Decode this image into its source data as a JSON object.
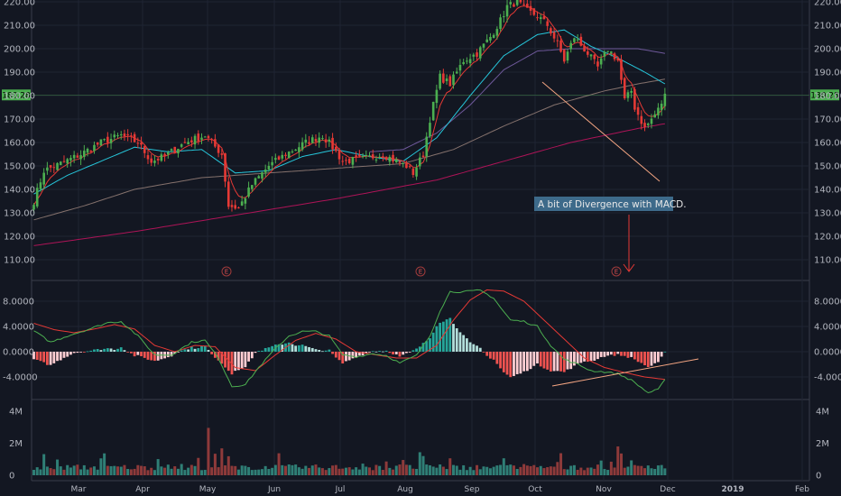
{
  "chart_data": {
    "type": "candlestick",
    "price_axis": {
      "ylim": [
        110,
        225
      ],
      "ticks": [
        "110.00",
        "120.00",
        "130.00",
        "140.00",
        "150.00",
        "160.00",
        "170.00",
        "180.00",
        "190.00",
        "200.00",
        "210.00",
        "220.00"
      ],
      "current_price": "180.28"
    },
    "macd_axis": {
      "ylim": [
        -7.5,
        10.5
      ],
      "ticks": [
        "-4.0000",
        "0.0000",
        "4.0000",
        "8.0000"
      ]
    },
    "volume_axis": {
      "ylim": [
        0,
        5.6
      ],
      "ticks": [
        "0",
        "2M",
        "4M"
      ]
    },
    "months": [
      "Mar",
      "Apr",
      "May",
      "Jun",
      "Jul",
      "Aug",
      "Sep",
      "Oct",
      "Nov",
      "Dec",
      "2019",
      "Feb"
    ],
    "earnings_marker_label": "E",
    "annotation": "A bit of Divergence with MACD.",
    "colors": {
      "up": "#26a69a",
      "down": "#ef5350",
      "candle_up": "#4caf50",
      "candle_down": "#e53935",
      "ma_fast": "#e53935",
      "ma_cyan": "#26c6da",
      "ma_purple": "#9575cd",
      "ma_tan": "#a1887f",
      "ma_maroon": "#ad1457",
      "macd": "#4caf50",
      "signal": "#e53935",
      "price_tag": "#4caf50",
      "trendline": "#f4a582"
    },
    "close_points": [
      [
        0,
        135
      ],
      [
        3,
        148
      ],
      [
        8,
        151
      ],
      [
        14,
        155
      ],
      [
        20,
        160
      ],
      [
        26,
        163
      ],
      [
        31,
        160
      ],
      [
        35,
        152
      ],
      [
        39,
        154
      ],
      [
        45,
        160
      ],
      [
        51,
        163
      ],
      [
        56,
        155
      ],
      [
        58,
        133
      ],
      [
        61,
        132
      ],
      [
        65,
        142
      ],
      [
        70,
        150
      ],
      [
        75,
        155
      ],
      [
        81,
        160
      ],
      [
        86,
        163
      ],
      [
        89,
        158
      ],
      [
        92,
        152
      ],
      [
        98,
        153
      ],
      [
        104,
        155
      ],
      [
        108,
        152
      ],
      [
        111,
        150
      ],
      [
        113,
        147
      ],
      [
        116,
        155
      ],
      [
        118,
        170
      ],
      [
        121,
        188
      ],
      [
        124,
        185
      ],
      [
        128,
        195
      ],
      [
        132,
        198
      ],
      [
        136,
        205
      ],
      [
        139,
        212
      ],
      [
        141,
        218
      ],
      [
        144,
        220
      ],
      [
        147,
        216
      ],
      [
        150,
        214
      ],
      [
        153,
        210
      ],
      [
        156,
        202
      ],
      [
        158,
        195
      ],
      [
        161,
        205
      ],
      [
        165,
        198
      ],
      [
        168,
        192
      ],
      [
        171,
        200
      ],
      [
        174,
        195
      ],
      [
        176,
        178
      ],
      [
        178,
        182
      ],
      [
        179,
        175
      ],
      [
        182,
        166
      ],
      [
        184,
        170
      ],
      [
        186,
        174
      ],
      [
        188,
        180
      ]
    ],
    "sma_cyan_points": [
      [
        0,
        138
      ],
      [
        10,
        146
      ],
      [
        20,
        152
      ],
      [
        30,
        158
      ],
      [
        40,
        156
      ],
      [
        50,
        157
      ],
      [
        60,
        147
      ],
      [
        70,
        148
      ],
      [
        80,
        154
      ],
      [
        90,
        157
      ],
      [
        100,
        154
      ],
      [
        110,
        152
      ],
      [
        120,
        162
      ],
      [
        130,
        180
      ],
      [
        140,
        197
      ],
      [
        150,
        206
      ],
      [
        158,
        208
      ],
      [
        166,
        201
      ],
      [
        174,
        196
      ],
      [
        182,
        190
      ],
      [
        188,
        185
      ]
    ],
    "sma_purple_points": [
      [
        100,
        156
      ],
      [
        110,
        157
      ],
      [
        120,
        164
      ],
      [
        130,
        176
      ],
      [
        140,
        191
      ],
      [
        150,
        199
      ],
      [
        160,
        200
      ],
      [
        170,
        200
      ],
      [
        180,
        200
      ],
      [
        188,
        198
      ]
    ],
    "sma_tan_points": [
      [
        0,
        127
      ],
      [
        15,
        133
      ],
      [
        30,
        140
      ],
      [
        50,
        145
      ],
      [
        70,
        147
      ],
      [
        90,
        149
      ],
      [
        110,
        151
      ],
      [
        125,
        157
      ],
      [
        140,
        167
      ],
      [
        155,
        176
      ],
      [
        170,
        182
      ],
      [
        180,
        185
      ],
      [
        188,
        187
      ]
    ],
    "sma_maroon_points": [
      [
        0,
        116
      ],
      [
        30,
        122
      ],
      [
        60,
        129
      ],
      [
        90,
        136
      ],
      [
        120,
        144
      ],
      [
        140,
        152
      ],
      [
        160,
        160
      ],
      [
        180,
        166
      ],
      [
        188,
        168
      ]
    ],
    "macd_points": [
      [
        0,
        3.3
      ],
      [
        5,
        1.5
      ],
      [
        10,
        2.5
      ],
      [
        16,
        3.5
      ],
      [
        22,
        4.6
      ],
      [
        26,
        4.8
      ],
      [
        31,
        2.5
      ],
      [
        36,
        -0.5
      ],
      [
        41,
        -0.5
      ],
      [
        47,
        1.5
      ],
      [
        51,
        1.8
      ],
      [
        55,
        -1.0
      ],
      [
        59,
        -5.5
      ],
      [
        63,
        -5.2
      ],
      [
        67,
        -2.5
      ],
      [
        72,
        0.5
      ],
      [
        76,
        2.5
      ],
      [
        80,
        3.2
      ],
      [
        84,
        3.2
      ],
      [
        88,
        2.5
      ],
      [
        92,
        -0.5
      ],
      [
        96,
        -0.8
      ],
      [
        101,
        -0.3
      ],
      [
        105,
        -0.6
      ],
      [
        109,
        -1.8
      ],
      [
        114,
        -0.6
      ],
      [
        118,
        2.5
      ],
      [
        121,
        6.5
      ],
      [
        124,
        9.5
      ],
      [
        128,
        9.5
      ],
      [
        133,
        9.7
      ],
      [
        137,
        8.5
      ],
      [
        139,
        7.0
      ],
      [
        142,
        5.0
      ],
      [
        146,
        4.8
      ],
      [
        150,
        4.0
      ],
      [
        154,
        1.0
      ],
      [
        158,
        -1.2
      ],
      [
        162,
        -2.0
      ],
      [
        166,
        -3.0
      ],
      [
        170,
        -3.2
      ],
      [
        174,
        -3.5
      ],
      [
        178,
        -4.5
      ],
      [
        183,
        -6.5
      ],
      [
        186,
        -6.0
      ],
      [
        188,
        -4.5
      ]
    ],
    "signal_points": [
      [
        0,
        4.5
      ],
      [
        6,
        3.5
      ],
      [
        12,
        3.0
      ],
      [
        18,
        3.6
      ],
      [
        24,
        4.3
      ],
      [
        30,
        3.6
      ],
      [
        36,
        1.0
      ],
      [
        42,
        0.0
      ],
      [
        48,
        1.0
      ],
      [
        54,
        0.8
      ],
      [
        60,
        -2.5
      ],
      [
        66,
        -3.0
      ],
      [
        72,
        -0.5
      ],
      [
        78,
        1.8
      ],
      [
        84,
        2.9
      ],
      [
        90,
        2.0
      ],
      [
        96,
        0.0
      ],
      [
        102,
        -0.5
      ],
      [
        108,
        -1.0
      ],
      [
        114,
        -1.0
      ],
      [
        120,
        1.0
      ],
      [
        125,
        5.0
      ],
      [
        130,
        8.2
      ],
      [
        135,
        9.8
      ],
      [
        140,
        9.6
      ],
      [
        146,
        8.0
      ],
      [
        152,
        5.0
      ],
      [
        158,
        2.0
      ],
      [
        164,
        -1.0
      ],
      [
        170,
        -2.5
      ],
      [
        176,
        -3.3
      ],
      [
        182,
        -4.0
      ],
      [
        188,
        -4.4
      ]
    ]
  }
}
